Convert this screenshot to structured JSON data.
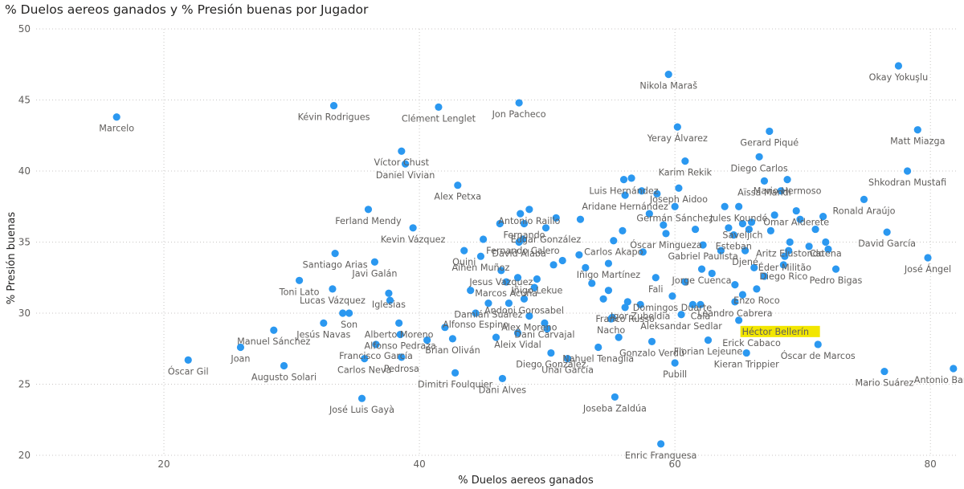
{
  "chart_data": {
    "type": "scatter",
    "title": "% Duelos aereos ganados y % Presión buenas por Jugador",
    "xlabel": "% Duelos aereos ganados",
    "ylabel": "% Presión buenas",
    "xlim": [
      10,
      82
    ],
    "ylim": [
      20,
      50
    ],
    "xticks": [
      20,
      40,
      60,
      80
    ],
    "yticks": [
      20,
      25,
      30,
      35,
      40,
      45,
      50
    ],
    "grid": true,
    "highlight_color": "#f2e600",
    "marker_color": "#2b98f0",
    "points": [
      {
        "x": 16.3,
        "y": 43.8,
        "label": "Marcelo"
      },
      {
        "x": 33.3,
        "y": 44.6,
        "label": "Kévin Rodrigues"
      },
      {
        "x": 41.5,
        "y": 44.5,
        "label": "Clément Lenglet"
      },
      {
        "x": 47.8,
        "y": 44.8,
        "label": "Jon Pacheco"
      },
      {
        "x": 59.5,
        "y": 46.8,
        "label": "Nikola Maraš"
      },
      {
        "x": 77.5,
        "y": 47.4,
        "label": "Okay Yokuşlu"
      },
      {
        "x": 60.2,
        "y": 43.1,
        "label": "Yeray Álvarez"
      },
      {
        "x": 79.0,
        "y": 42.9,
        "label": "Matt Miazga"
      },
      {
        "x": 67.4,
        "y": 42.8,
        "label": "Gerard Piqué"
      },
      {
        "x": 38.6,
        "y": 41.4,
        "label": "Víctor Chust"
      },
      {
        "x": 60.8,
        "y": 40.7,
        "label": "Karim Rekik"
      },
      {
        "x": 66.6,
        "y": 41.0,
        "label": "Diego Carlos"
      },
      {
        "x": 38.9,
        "y": 40.5,
        "label": "Daniel Vivian"
      },
      {
        "x": 78.2,
        "y": 40.0,
        "label": "Shkodran Mustafi"
      },
      {
        "x": 43.0,
        "y": 39.0,
        "label": "Alex Petxa"
      },
      {
        "x": 56.0,
        "y": 39.4,
        "label": "Luis Hernández"
      },
      {
        "x": 60.3,
        "y": 38.8,
        "label": "Joseph Aidoo"
      },
      {
        "x": 68.8,
        "y": 39.4,
        "label": "Mario Hermoso"
      },
      {
        "x": 67.0,
        "y": 39.3,
        "label": "Aïssa Mandi"
      },
      {
        "x": 56.1,
        "y": 38.3,
        "label": "Aridane Hernández"
      },
      {
        "x": 74.8,
        "y": 38.0,
        "label": "Ronald Araújo"
      },
      {
        "x": 48.6,
        "y": 37.3,
        "label": "Antonio Raillo"
      },
      {
        "x": 60.0,
        "y": 37.5,
        "label": "Germán Sánchez"
      },
      {
        "x": 65.0,
        "y": 37.5,
        "label": "Jules Koundé"
      },
      {
        "x": 48.2,
        "y": 36.3,
        "label": "Fernando"
      },
      {
        "x": 49.9,
        "y": 36.0,
        "label": "Edgar González"
      },
      {
        "x": 69.5,
        "y": 37.2,
        "label": "Omar Alderete"
      },
      {
        "x": 36.0,
        "y": 37.3,
        "label": "Ferland Mendy"
      },
      {
        "x": 65.3,
        "y": 36.3,
        "label": "Saveljich"
      },
      {
        "x": 64.6,
        "y": 35.5,
        "label": "Esteban"
      },
      {
        "x": 39.5,
        "y": 36.0,
        "label": "Kevin Vázquez"
      },
      {
        "x": 48.1,
        "y": 35.2,
        "label": "Fernando Calero"
      },
      {
        "x": 47.8,
        "y": 35.0,
        "label": "David Alaba"
      },
      {
        "x": 59.3,
        "y": 35.6,
        "label": "Óscar Mingueza"
      },
      {
        "x": 69.0,
        "y": 35.0,
        "label": "Aritz Elustondo"
      },
      {
        "x": 76.6,
        "y": 35.7,
        "label": "David García"
      },
      {
        "x": 71.8,
        "y": 35.0,
        "label": "Catena"
      },
      {
        "x": 33.4,
        "y": 34.2,
        "label": "Santiago Arias"
      },
      {
        "x": 55.2,
        "y": 35.1,
        "label": "Carlos Akapo"
      },
      {
        "x": 62.2,
        "y": 34.8,
        "label": "Gabriel Paulista"
      },
      {
        "x": 44.8,
        "y": 34.0,
        "label": "Aihen Muñoz"
      },
      {
        "x": 65.5,
        "y": 34.4,
        "label": "Djené"
      },
      {
        "x": 43.5,
        "y": 34.4,
        "label": "Quini"
      },
      {
        "x": 68.6,
        "y": 34.0,
        "label": "Éder Militão"
      },
      {
        "x": 79.8,
        "y": 33.9,
        "label": "José Ángel"
      },
      {
        "x": 36.5,
        "y": 33.6,
        "label": "Javi Galán"
      },
      {
        "x": 46.4,
        "y": 33.0,
        "label": "Jesus Vazquez"
      },
      {
        "x": 54.8,
        "y": 33.5,
        "label": "Iñigo Martínez"
      },
      {
        "x": 62.1,
        "y": 33.1,
        "label": "Jorge Cuenca"
      },
      {
        "x": 68.5,
        "y": 33.4,
        "label": "Diego Rico"
      },
      {
        "x": 30.6,
        "y": 32.3,
        "label": "Toni Lato"
      },
      {
        "x": 46.8,
        "y": 32.2,
        "label": "Marcos Acuña"
      },
      {
        "x": 49.2,
        "y": 32.4,
        "label": "Iñigo Lekue"
      },
      {
        "x": 58.5,
        "y": 32.5,
        "label": "Fali"
      },
      {
        "x": 72.6,
        "y": 33.1,
        "label": "Pedro Bigas"
      },
      {
        "x": 33.2,
        "y": 31.7,
        "label": "Lucas Vázquez"
      },
      {
        "x": 59.8,
        "y": 31.2,
        "label": "Domingos Duarte"
      },
      {
        "x": 66.4,
        "y": 31.7,
        "label": "Enzo Roco"
      },
      {
        "x": 48.2,
        "y": 31.0,
        "label": "Andoni Gorosabel"
      },
      {
        "x": 57.3,
        "y": 30.6,
        "label": "Igor Zubeldia"
      },
      {
        "x": 37.6,
        "y": 31.4,
        "label": "Iglesias"
      },
      {
        "x": 45.4,
        "y": 30.7,
        "label": "Damián Suárez"
      },
      {
        "x": 62.0,
        "y": 30.6,
        "label": "Cala"
      },
      {
        "x": 64.7,
        "y": 30.8,
        "label": "Leandro Cabrera"
      },
      {
        "x": 56.1,
        "y": 30.4,
        "label": "Franco Russo"
      },
      {
        "x": 34.5,
        "y": 30.0,
        "label": "Son"
      },
      {
        "x": 44.4,
        "y": 30.0,
        "label": "Alfonso Espino"
      },
      {
        "x": 48.6,
        "y": 29.8,
        "label": "Alex Moreno"
      },
      {
        "x": 32.5,
        "y": 29.3,
        "label": "Jesús Navas"
      },
      {
        "x": 38.4,
        "y": 29.3,
        "label": "Alberto Moreno"
      },
      {
        "x": 60.5,
        "y": 29.9,
        "label": "Aleksandar Sedlar"
      },
      {
        "x": 65.0,
        "y": 29.5,
        "label": "Héctor Bellerín",
        "highlight": true
      },
      {
        "x": 55.0,
        "y": 29.6,
        "label": "Nacho"
      },
      {
        "x": 28.6,
        "y": 28.8,
        "label": "Manuel Sánchez"
      },
      {
        "x": 49.8,
        "y": 29.3,
        "label": "Dani Carvajal"
      },
      {
        "x": 38.5,
        "y": 28.5,
        "label": "Alfonso Pedraza"
      },
      {
        "x": 47.7,
        "y": 28.6,
        "label": "Aleix Vidal"
      },
      {
        "x": 58.2,
        "y": 28.0,
        "label": "Gonzalo Verdú"
      },
      {
        "x": 62.6,
        "y": 28.1,
        "label": "Florian Lejeune"
      },
      {
        "x": 66.0,
        "y": 28.7,
        "label": "Erick Cabaco"
      },
      {
        "x": 26.0,
        "y": 27.6,
        "label": "Joan"
      },
      {
        "x": 36.6,
        "y": 27.8,
        "label": "Francisco García"
      },
      {
        "x": 42.6,
        "y": 28.2,
        "label": "Brian Oliván"
      },
      {
        "x": 54.0,
        "y": 27.6,
        "label": "Nahuel Tenaglia"
      },
      {
        "x": 71.2,
        "y": 27.8,
        "label": "Óscar de Marcos"
      },
      {
        "x": 50.3,
        "y": 27.2,
        "label": "Diego González"
      },
      {
        "x": 65.6,
        "y": 27.2,
        "label": "Kieran Trippier"
      },
      {
        "x": 21.9,
        "y": 26.7,
        "label": "Óscar Gil"
      },
      {
        "x": 35.7,
        "y": 26.8,
        "label": "Carlos Neva"
      },
      {
        "x": 38.6,
        "y": 26.9,
        "label": "Pedrosa"
      },
      {
        "x": 51.6,
        "y": 26.8,
        "label": "Unai García"
      },
      {
        "x": 29.4,
        "y": 26.3,
        "label": "Augusto Solari"
      },
      {
        "x": 76.4,
        "y": 25.9,
        "label": "Mario Suárez"
      },
      {
        "x": 81.8,
        "y": 26.1,
        "label": "Antonio Barragán"
      },
      {
        "x": 42.8,
        "y": 25.8,
        "label": "Dimitri Foulquier"
      },
      {
        "x": 60.0,
        "y": 26.5,
        "label": "Pubill"
      },
      {
        "x": 46.5,
        "y": 25.4,
        "label": "Dani Alves"
      },
      {
        "x": 35.5,
        "y": 24.0,
        "label": "José Luis Gayà"
      },
      {
        "x": 55.3,
        "y": 24.1,
        "label": "Joseba Zaldúa"
      },
      {
        "x": 58.9,
        "y": 20.8,
        "label": "Enric Franquesa"
      },
      {
        "x": 34.0,
        "y": 30.0
      },
      {
        "x": 37.7,
        "y": 30.9
      },
      {
        "x": 42.0,
        "y": 29.0
      },
      {
        "x": 44.0,
        "y": 31.6
      },
      {
        "x": 46.0,
        "y": 28.3
      },
      {
        "x": 47.0,
        "y": 30.7
      },
      {
        "x": 47.7,
        "y": 32.5
      },
      {
        "x": 49.0,
        "y": 31.8
      },
      {
        "x": 50.0,
        "y": 28.9
      },
      {
        "x": 50.5,
        "y": 33.4
      },
      {
        "x": 51.2,
        "y": 33.7
      },
      {
        "x": 52.5,
        "y": 34.1
      },
      {
        "x": 53.0,
        "y": 33.2
      },
      {
        "x": 53.5,
        "y": 32.1
      },
      {
        "x": 54.4,
        "y": 31.0
      },
      {
        "x": 54.8,
        "y": 31.6
      },
      {
        "x": 55.1,
        "y": 29.7
      },
      {
        "x": 55.6,
        "y": 28.3
      },
      {
        "x": 56.3,
        "y": 30.8
      },
      {
        "x": 56.6,
        "y": 39.5
      },
      {
        "x": 57.4,
        "y": 38.6
      },
      {
        "x": 58.0,
        "y": 37.0
      },
      {
        "x": 58.6,
        "y": 38.4
      },
      {
        "x": 59.1,
        "y": 36.2
      },
      {
        "x": 60.8,
        "y": 32.2
      },
      {
        "x": 61.4,
        "y": 30.6
      },
      {
        "x": 62.9,
        "y": 32.8
      },
      {
        "x": 63.6,
        "y": 34.4
      },
      {
        "x": 64.2,
        "y": 36.0
      },
      {
        "x": 64.7,
        "y": 32.0
      },
      {
        "x": 65.3,
        "y": 31.3
      },
      {
        "x": 65.8,
        "y": 35.9
      },
      {
        "x": 66.0,
        "y": 36.4
      },
      {
        "x": 66.2,
        "y": 33.2
      },
      {
        "x": 67.0,
        "y": 32.6
      },
      {
        "x": 67.5,
        "y": 35.8
      },
      {
        "x": 67.8,
        "y": 36.9
      },
      {
        "x": 68.3,
        "y": 38.6
      },
      {
        "x": 68.9,
        "y": 34.4
      },
      {
        "x": 69.8,
        "y": 36.6
      },
      {
        "x": 70.5,
        "y": 34.7
      },
      {
        "x": 71.0,
        "y": 35.9
      },
      {
        "x": 71.6,
        "y": 36.8
      },
      {
        "x": 72.0,
        "y": 34.5
      },
      {
        "x": 40.6,
        "y": 28.1
      },
      {
        "x": 45.0,
        "y": 35.2
      },
      {
        "x": 46.3,
        "y": 36.3
      },
      {
        "x": 47.9,
        "y": 37.0
      },
      {
        "x": 50.7,
        "y": 36.7
      },
      {
        "x": 52.6,
        "y": 36.6
      },
      {
        "x": 55.9,
        "y": 35.8
      },
      {
        "x": 57.5,
        "y": 34.3
      },
      {
        "x": 61.6,
        "y": 35.9
      },
      {
        "x": 63.9,
        "y": 37.5
      }
    ]
  }
}
